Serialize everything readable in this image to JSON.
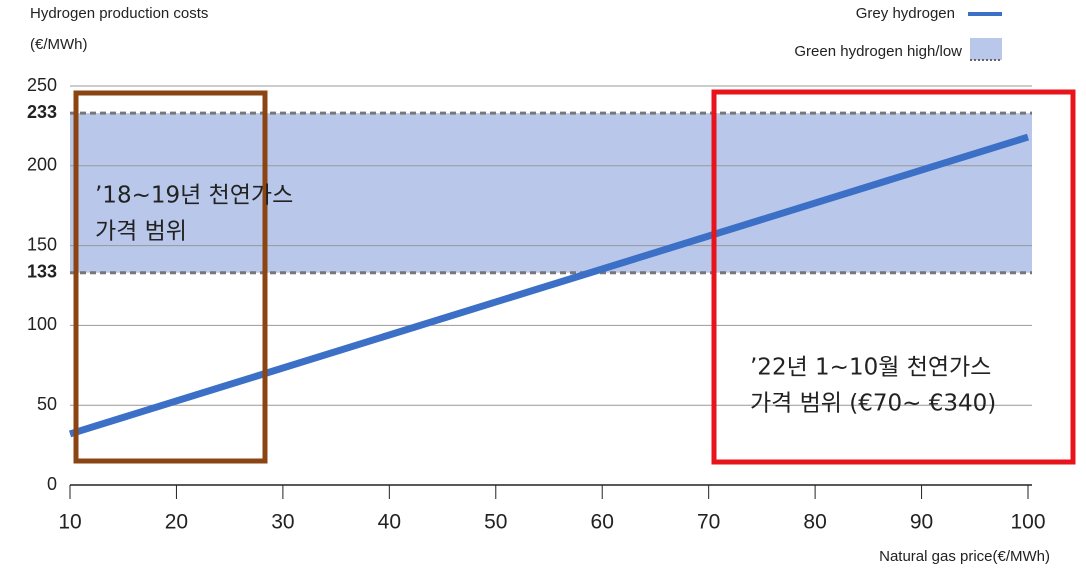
{
  "chart_data": {
    "type": "line",
    "title": "Hydrogen production costs",
    "y_label": "(€/MWh)",
    "x_label": "Natural gas price(€/MWh)",
    "x": [
      10,
      100
    ],
    "series": [
      {
        "name": "Grey hydrogen",
        "color": "#3b70c6",
        "values": [
          32,
          218
        ]
      }
    ],
    "band": {
      "name": "Green hydrogen high/low",
      "color": "#b9c8ea",
      "low": 133,
      "high": 233
    },
    "xlim": [
      10,
      100
    ],
    "xticks": [
      10,
      20,
      30,
      40,
      50,
      60,
      70,
      80,
      90,
      100
    ],
    "ylim": [
      0,
      250
    ],
    "yticks": [
      0,
      50,
      100,
      133,
      150,
      200,
      233,
      250
    ],
    "grid": true,
    "annotations": [
      {
        "lines": [
          "’18~19년 천연가스",
          "가격 범위"
        ],
        "color": "#8b4513"
      },
      {
        "lines": [
          "’22년 1~10월 천연가스",
          "가격 범위 (€70~ €340)"
        ],
        "color": "#e8141b"
      }
    ]
  }
}
